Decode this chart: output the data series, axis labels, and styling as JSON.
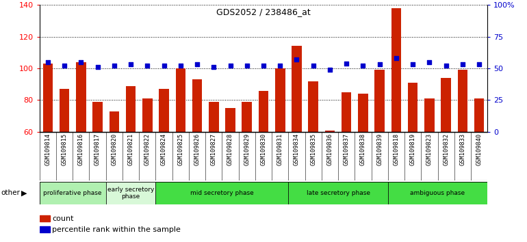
{
  "title": "GDS2052 / 238486_at",
  "samples": [
    "GSM109814",
    "GSM109815",
    "GSM109816",
    "GSM109817",
    "GSM109820",
    "GSM109821",
    "GSM109822",
    "GSM109824",
    "GSM109825",
    "GSM109826",
    "GSM109827",
    "GSM109828",
    "GSM109829",
    "GSM109830",
    "GSM109831",
    "GSM109834",
    "GSM109835",
    "GSM109836",
    "GSM109837",
    "GSM109838",
    "GSM109839",
    "GSM109818",
    "GSM109819",
    "GSM109823",
    "GSM109832",
    "GSM109833",
    "GSM109840"
  ],
  "counts": [
    103,
    87,
    104,
    79,
    73,
    89,
    81,
    87,
    100,
    93,
    79,
    75,
    79,
    86,
    100,
    114,
    92,
    61,
    85,
    84,
    99,
    138,
    91,
    81,
    94,
    99,
    81
  ],
  "percentiles": [
    55,
    52,
    55,
    51,
    52,
    53,
    52,
    52,
    52,
    53,
    51,
    52,
    52,
    52,
    52,
    57,
    52,
    49,
    54,
    52,
    53,
    58,
    53,
    55,
    52,
    53,
    53
  ],
  "phases": [
    {
      "name": "proliferative phase",
      "start": 0,
      "end": 4,
      "color": "#b0f0b0"
    },
    {
      "name": "early secretory\nphase",
      "start": 4,
      "end": 7,
      "color": "#d8f8d8"
    },
    {
      "name": "mid secretory phase",
      "start": 7,
      "end": 15,
      "color": "#44dd44"
    },
    {
      "name": "late secretory phase",
      "start": 15,
      "end": 21,
      "color": "#44dd44"
    },
    {
      "name": "ambiguous phase",
      "start": 21,
      "end": 27,
      "color": "#44dd44"
    }
  ],
  "bar_color": "#CC2200",
  "dot_color": "#0000CC",
  "ylim_left": [
    60,
    140
  ],
  "ylim_right": [
    0,
    100
  ],
  "yticks_left": [
    60,
    80,
    100,
    120,
    140
  ],
  "yticks_right": [
    0,
    25,
    50,
    75,
    100
  ],
  "yticklabels_right": [
    "0",
    "25",
    "50",
    "75",
    "100%"
  ],
  "bg_color": "#d3d3d3",
  "plot_bg": "#ffffff",
  "tick_bg": "#c8c8c8"
}
